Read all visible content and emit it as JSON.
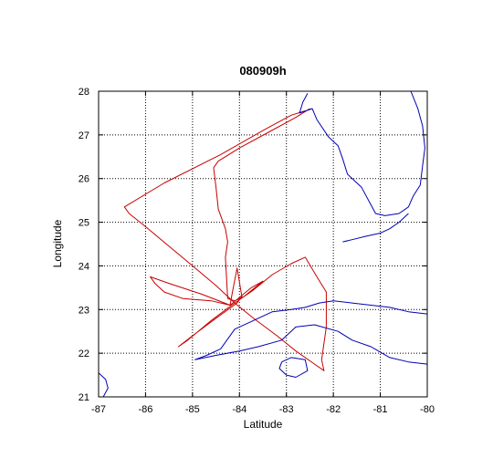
{
  "chart_data": {
    "type": "line",
    "title": "080909h",
    "xlabel": "Latitude",
    "ylabel": "Longitude",
    "xlim": [
      -87,
      -80
    ],
    "ylim": [
      21,
      28
    ],
    "xticks": [
      -87,
      -86,
      -85,
      -84,
      -83,
      -82,
      -81,
      -80
    ],
    "yticks": [
      21,
      22,
      23,
      24,
      25,
      26,
      27,
      28
    ],
    "grid": true,
    "colors": {
      "track": "#c80000",
      "coastline": "#0000b4"
    },
    "series": [
      {
        "role": "flight-track",
        "points": [
          [
            -82.6,
            27.55
          ],
          [
            -82.9,
            27.45
          ],
          [
            -83.5,
            27.1
          ],
          [
            -84.4,
            26.55
          ],
          [
            -85.6,
            25.9
          ],
          [
            -86.45,
            25.35
          ],
          [
            -86.35,
            25.2
          ],
          [
            -86.0,
            24.9
          ],
          [
            -85.5,
            24.45
          ],
          [
            -85.0,
            24.0
          ],
          [
            -84.5,
            23.55
          ],
          [
            -84.1,
            23.15
          ],
          [
            -83.7,
            22.8
          ],
          [
            -83.2,
            22.4
          ],
          [
            -82.8,
            22.05
          ],
          [
            -82.4,
            21.75
          ],
          [
            -82.2,
            21.6
          ],
          [
            -82.25,
            21.85
          ],
          [
            -82.15,
            22.6
          ],
          [
            -82.15,
            23.4
          ],
          [
            -82.35,
            23.75
          ],
          [
            -82.6,
            24.2
          ],
          [
            -82.9,
            24.05
          ],
          [
            -83.3,
            23.8
          ],
          [
            -83.7,
            23.45
          ],
          [
            -84.1,
            23.15
          ],
          [
            -84.6,
            22.75
          ],
          [
            -85.1,
            22.3
          ],
          [
            -85.3,
            22.15
          ],
          [
            -85.0,
            22.4
          ],
          [
            -84.5,
            22.8
          ],
          [
            -84.05,
            23.15
          ],
          [
            -83.95,
            23.3
          ],
          [
            -84.05,
            23.95
          ],
          [
            -84.15,
            23.4
          ],
          [
            -84.2,
            23.1
          ],
          [
            -84.6,
            23.2
          ],
          [
            -85.2,
            23.25
          ],
          [
            -85.6,
            23.4
          ],
          [
            -85.8,
            23.6
          ],
          [
            -85.9,
            23.75
          ],
          [
            -85.5,
            23.6
          ],
          [
            -84.8,
            23.35
          ],
          [
            -84.2,
            23.1
          ],
          [
            -83.75,
            23.5
          ],
          [
            -83.5,
            23.65
          ],
          [
            -83.9,
            23.3
          ],
          [
            -84.1,
            23.2
          ],
          [
            -84.25,
            23.25
          ],
          [
            -84.3,
            24.2
          ],
          [
            -84.25,
            24.55
          ],
          [
            -84.3,
            24.85
          ],
          [
            -84.45,
            25.3
          ],
          [
            -84.5,
            25.8
          ],
          [
            -84.55,
            26.25
          ],
          [
            -84.45,
            26.4
          ],
          [
            -84.0,
            26.7
          ],
          [
            -83.4,
            27.05
          ],
          [
            -82.8,
            27.4
          ],
          [
            -82.5,
            27.6
          ]
        ]
      },
      {
        "role": "coastline-florida",
        "points": [
          [
            -82.55,
            27.95
          ],
          [
            -82.65,
            27.75
          ],
          [
            -82.72,
            27.5
          ],
          [
            -82.45,
            27.6
          ],
          [
            -82.35,
            27.35
          ],
          [
            -82.1,
            26.95
          ],
          [
            -81.9,
            26.75
          ],
          [
            -81.8,
            26.45
          ],
          [
            -81.7,
            26.1
          ],
          [
            -81.4,
            25.8
          ],
          [
            -81.1,
            25.2
          ],
          [
            -80.9,
            25.15
          ],
          [
            -80.6,
            25.2
          ],
          [
            -80.4,
            25.35
          ],
          [
            -80.3,
            25.6
          ],
          [
            -80.15,
            25.85
          ],
          [
            -80.1,
            26.3
          ],
          [
            -80.05,
            26.7
          ],
          [
            -80.1,
            27.2
          ],
          [
            -80.2,
            27.6
          ],
          [
            -80.35,
            28.0
          ]
        ]
      },
      {
        "role": "coastline-keys",
        "points": [
          [
            -81.8,
            24.55
          ],
          [
            -81.6,
            24.6
          ],
          [
            -81.3,
            24.68
          ],
          [
            -81.0,
            24.75
          ],
          [
            -80.8,
            24.85
          ],
          [
            -80.6,
            25.0
          ],
          [
            -80.4,
            25.2
          ]
        ]
      },
      {
        "role": "coastline-cuba-north",
        "points": [
          [
            -84.95,
            21.85
          ],
          [
            -84.7,
            21.95
          ],
          [
            -84.4,
            22.1
          ],
          [
            -84.1,
            22.55
          ],
          [
            -83.7,
            22.75
          ],
          [
            -83.3,
            22.95
          ],
          [
            -82.9,
            23.0
          ],
          [
            -82.6,
            23.05
          ],
          [
            -82.3,
            23.15
          ],
          [
            -82.0,
            23.2
          ],
          [
            -81.6,
            23.15
          ],
          [
            -81.2,
            23.1
          ],
          [
            -80.8,
            23.05
          ],
          [
            -80.4,
            22.95
          ],
          [
            -80.0,
            22.9
          ]
        ]
      },
      {
        "role": "coastline-cuba-south",
        "points": [
          [
            -84.95,
            21.85
          ],
          [
            -84.5,
            21.95
          ],
          [
            -84.0,
            22.05
          ],
          [
            -83.6,
            22.15
          ],
          [
            -83.1,
            22.3
          ],
          [
            -82.8,
            22.6
          ],
          [
            -82.4,
            22.65
          ],
          [
            -81.9,
            22.5
          ],
          [
            -81.6,
            22.3
          ],
          [
            -81.2,
            22.15
          ],
          [
            -80.8,
            21.9
          ],
          [
            -80.4,
            21.8
          ],
          [
            -80.0,
            21.75
          ]
        ]
      },
      {
        "role": "coastline-isla-juventud",
        "points": [
          [
            -83.1,
            21.8
          ],
          [
            -82.9,
            21.9
          ],
          [
            -82.6,
            21.85
          ],
          [
            -82.55,
            21.6
          ],
          [
            -82.8,
            21.45
          ],
          [
            -83.0,
            21.5
          ],
          [
            -83.15,
            21.65
          ],
          [
            -83.1,
            21.8
          ]
        ]
      },
      {
        "role": "coastline-yucatan",
        "points": [
          [
            -87.0,
            21.55
          ],
          [
            -86.85,
            21.4
          ],
          [
            -86.8,
            21.2
          ],
          [
            -86.9,
            21.0
          ]
        ]
      }
    ]
  }
}
